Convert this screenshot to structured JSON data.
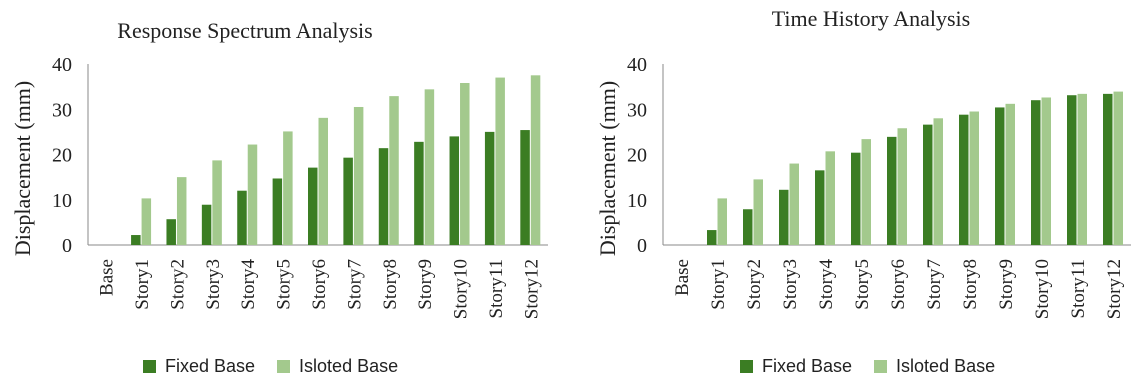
{
  "colors": {
    "fixed": "#3b7d23",
    "isolated": "#a3c98d",
    "axis": "#8a8a8a",
    "text": "#222222"
  },
  "legend": {
    "fixed_label": "Fixed Base",
    "isolated_label": "Isloted Base"
  },
  "chart_data": [
    {
      "type": "bar",
      "title": "Response Spectrum Analysis",
      "ylabel": "Displacement (mm)",
      "xlabel": "",
      "ylim": [
        0,
        40
      ],
      "yticks": [
        0,
        10,
        20,
        30,
        40
      ],
      "grid": false,
      "legend_position": "bottom",
      "categories": [
        "Base",
        "Story1",
        "Story2",
        "Story3",
        "Story4",
        "Story5",
        "Story6",
        "Story7",
        "Story8",
        "Story9",
        "Story10",
        "Story11",
        "Story12"
      ],
      "series": [
        {
          "name": "Fixed Base",
          "values": [
            0,
            2.2,
            5.7,
            8.9,
            12.0,
            14.7,
            17.1,
            19.3,
            21.4,
            22.8,
            24.0,
            25.0,
            25.4
          ]
        },
        {
          "name": "Isloted Base",
          "values": [
            0,
            10.3,
            15.0,
            18.7,
            22.2,
            25.1,
            28.1,
            30.5,
            32.9,
            34.4,
            35.8,
            37.0,
            37.5
          ]
        }
      ]
    },
    {
      "type": "bar",
      "title": "Time History Analysis",
      "ylabel": "Displacement (mm)",
      "xlabel": "",
      "ylim": [
        0,
        40
      ],
      "yticks": [
        0,
        10,
        20,
        30,
        40
      ],
      "grid": false,
      "legend_position": "bottom",
      "categories": [
        "Base",
        "Story1",
        "Story2",
        "Story3",
        "Story4",
        "Story5",
        "Story6",
        "Story7",
        "Story8",
        "Story9",
        "Story10",
        "Story11",
        "Story12"
      ],
      "series": [
        {
          "name": "Fixed Base",
          "values": [
            0,
            3.3,
            7.9,
            12.2,
            16.5,
            20.4,
            23.9,
            26.6,
            28.8,
            30.4,
            32.0,
            33.1,
            33.4
          ]
        },
        {
          "name": "Isloted Base",
          "values": [
            0,
            10.3,
            14.5,
            18.0,
            20.7,
            23.4,
            25.8,
            28.0,
            29.5,
            31.2,
            32.6,
            33.4,
            33.9
          ]
        }
      ]
    }
  ]
}
